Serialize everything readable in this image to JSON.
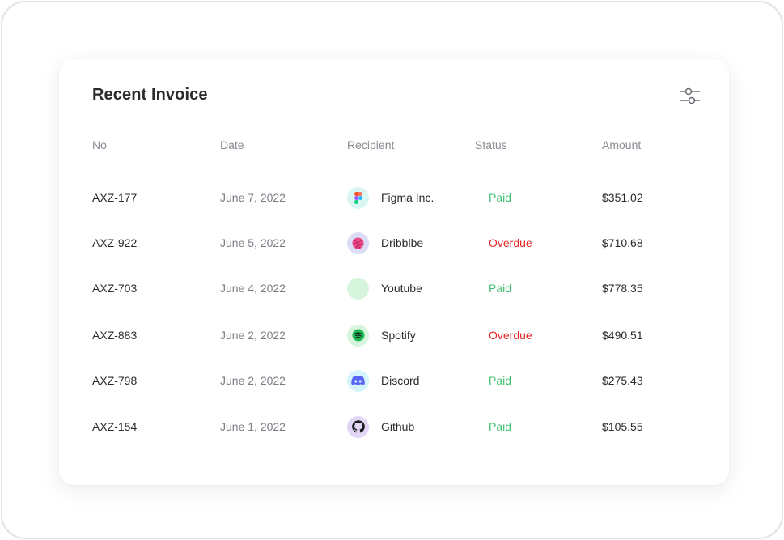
{
  "card": {
    "title": "Recent Invoice"
  },
  "table": {
    "headers": {
      "no": "No",
      "date": "Date",
      "recipient": "Recipient",
      "status": "Status",
      "amount": "Amount"
    },
    "rows": [
      {
        "no": "AXZ-177",
        "date": "June 7, 2022",
        "recipient": "Figma Inc.",
        "icon": "figma-icon",
        "status": "Paid",
        "amount": "$351.02"
      },
      {
        "no": "AXZ-922",
        "date": "June 5, 2022",
        "recipient": "Dribblbe",
        "icon": "dribbble-icon",
        "status": "Overdue",
        "amount": "$710.68"
      },
      {
        "no": "AXZ-703",
        "date": "June 4, 2022",
        "recipient": "Youtube",
        "icon": "youtube-icon",
        "status": "Paid",
        "amount": "$778.35"
      },
      {
        "no": "AXZ-883",
        "date": "June 2, 2022",
        "recipient": "Spotify",
        "icon": "spotify-icon",
        "status": "Overdue",
        "amount": "$490.51"
      },
      {
        "no": "AXZ-798",
        "date": "June 2, 2022",
        "recipient": "Discord",
        "icon": "discord-icon",
        "status": "Paid",
        "amount": "$275.43"
      },
      {
        "no": "AXZ-154",
        "date": "June 1, 2022",
        "recipient": "Github",
        "icon": "github-icon",
        "status": "Paid",
        "amount": "$105.55"
      }
    ]
  },
  "colors": {
    "paid": "#3fbf6f",
    "overdue": "#e32424"
  }
}
